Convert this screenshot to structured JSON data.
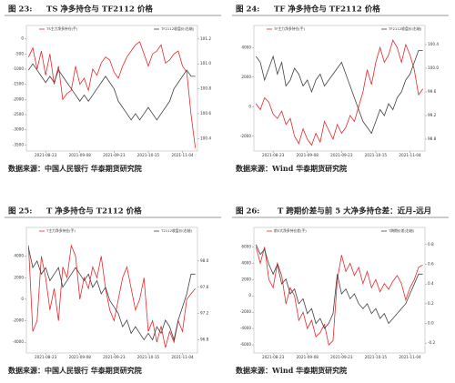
{
  "chart_data": [
    {
      "type": "line",
      "figure_label": "图 23:",
      "title": "TS 净多持仓与 TF2112 价格",
      "source": "数据来源：中国人民银行 华泰期货研究院",
      "categories": [
        null,
        null,
        null,
        null,
        "2021-08-23",
        null,
        null,
        null,
        null,
        null,
        null,
        null,
        "2021-09-08",
        null,
        null,
        null,
        null,
        null,
        null,
        null,
        "2021-09-23",
        null,
        null,
        null,
        null,
        null,
        null,
        null,
        "2021-10-15",
        null,
        null,
        null,
        null,
        null,
        null,
        null,
        "2021-11-04",
        null,
        null,
        null
      ],
      "ylim": [
        -3700,
        200
      ],
      "yticks": [
        -3500,
        -3000,
        -2500,
        -2000,
        -1500,
        -1000,
        -500,
        0
      ],
      "y2lim": [
        100.3,
        101.25
      ],
      "y2ticks": [
        {
          "value": 100.4,
          "label": "100.4"
        },
        {
          "value": 100.6,
          "label": "100.6"
        },
        {
          "value": 100.8,
          "label": "100.8"
        },
        {
          "value": 101.0,
          "label": "101.0"
        },
        {
          "value": 101.2,
          "label": "101.2"
        }
      ],
      "series": [
        {
          "name": "TS主力净多持仓(手)",
          "color": "#e8282b",
          "values": [
            -600,
            -300,
            -1000,
            -400,
            -1200,
            -500,
            -1500,
            -900,
            -2000,
            -1800,
            -1700,
            -900,
            -1500,
            -1300,
            -1700,
            -1000,
            -1200,
            -800,
            -600,
            -700,
            -1100,
            -1300,
            -900,
            -600,
            -400,
            -200,
            -100,
            -500,
            -900,
            -500,
            -400,
            -200,
            -800,
            -700,
            -500,
            -400,
            -900,
            -1100,
            -2500,
            -3600
          ]
        },
        {
          "name": "TF2112收盘价(右轴)",
          "color": "#404040",
          "axis": "y2",
          "values": [
            100.95,
            101.0,
            100.95,
            100.9,
            100.85,
            100.9,
            100.85,
            100.95,
            100.9,
            100.85,
            100.8,
            100.75,
            100.7,
            100.75,
            100.7,
            100.75,
            100.8,
            100.85,
            100.9,
            100.85,
            100.8,
            100.7,
            100.65,
            100.6,
            100.55,
            100.6,
            100.55,
            100.6,
            100.65,
            100.6,
            100.55,
            100.6,
            100.65,
            100.7,
            100.8,
            100.85,
            100.9,
            100.95,
            100.9,
            100.9
          ]
        }
      ]
    },
    {
      "type": "line",
      "figure_label": "图 24:",
      "title": "TF 净多持仓与 TF2112 价格",
      "source": "数据来源：Wind 华泰期货研究院",
      "categories": [
        null,
        null,
        null,
        null,
        "2021-08-23",
        null,
        null,
        null,
        null,
        null,
        null,
        null,
        "2021-09-08",
        null,
        null,
        null,
        null,
        null,
        null,
        null,
        "2021-09-23",
        null,
        null,
        null,
        null,
        null,
        null,
        null,
        "2021-10-15",
        null,
        null,
        null,
        null,
        null,
        null,
        null,
        "2021-11-04",
        null,
        null,
        null
      ],
      "ylim": [
        -3000,
        5000
      ],
      "yticks": [
        -2000,
        0,
        2000,
        4000
      ],
      "y2lim": [
        98.6,
        100.6
      ],
      "y2ticks": [
        {
          "value": 98.8,
          "label": "98.8"
        },
        {
          "value": 99.2,
          "label": "99.2"
        },
        {
          "value": 99.6,
          "label": "99.6"
        },
        {
          "value": 100.0,
          "label": "100.0"
        },
        {
          "value": 100.4,
          "label": "100.4"
        }
      ],
      "series": [
        {
          "name": "TF主力净多持仓(手)",
          "color": "#e8282b",
          "values": [
            200,
            -200,
            600,
            300,
            -500,
            -800,
            -300,
            -1200,
            -800,
            -2000,
            -2500,
            -1500,
            -2200,
            -2600,
            -1800,
            -2400,
            -1000,
            -1600,
            -2200,
            -1200,
            -1800,
            -1400,
            -600,
            -1000,
            0,
            1000,
            2500,
            1500,
            3000,
            4000,
            3000,
            3500,
            4500,
            4000,
            3000,
            4200,
            3500,
            2500,
            800,
            1200
          ]
        },
        {
          "name": "TF2112收盘价(右轴)",
          "color": "#404040",
          "axis": "y2",
          "values": [
            100.2,
            100.1,
            99.8,
            100.0,
            100.2,
            99.9,
            100.1,
            99.7,
            99.8,
            100.0,
            99.9,
            99.7,
            99.8,
            99.6,
            99.8,
            99.9,
            99.7,
            99.8,
            99.9,
            100.0,
            100.1,
            99.9,
            99.7,
            99.5,
            99.3,
            99.1,
            99.0,
            98.9,
            99.1,
            99.3,
            99.2,
            99.4,
            99.3,
            99.5,
            99.6,
            99.8,
            99.9,
            100.1,
            100.3,
            100.3
          ]
        }
      ]
    },
    {
      "type": "line",
      "figure_label": "图 25:",
      "title": "T 净多持仓与 T2112 价格",
      "source": "数据来源：中国人民银行 华泰期货研究院",
      "categories": [
        null,
        null,
        null,
        null,
        "2021-08-23",
        null,
        null,
        null,
        null,
        null,
        null,
        null,
        "2021-09-08",
        null,
        null,
        null,
        null,
        null,
        null,
        null,
        "2021-09-23",
        null,
        null,
        null,
        null,
        null,
        null,
        null,
        "2021-10-15",
        null,
        null,
        null,
        null,
        null,
        null,
        null,
        "2021-11-04",
        null,
        null,
        null
      ],
      "ylim": [
        -5000,
        6000
      ],
      "yticks": [
        -4000,
        -2000,
        0,
        2000,
        4000
      ],
      "y2lim": [
        96.6,
        98.4
      ],
      "y2ticks": [
        {
          "value": 96.8,
          "label": "96.8"
        },
        {
          "value": 97.2,
          "label": "97.2"
        },
        {
          "value": 97.6,
          "label": "97.6"
        },
        {
          "value": 98.0,
          "label": "98.0"
        }
      ],
      "series": [
        {
          "name": "T主力净多持仓(手)",
          "color": "#e8282b",
          "values": [
            5000,
            -3000,
            -2000,
            4000,
            2000,
            -1000,
            1000,
            -2000,
            3000,
            2000,
            5000,
            4000,
            0,
            2000,
            1000,
            3000,
            2000,
            4000,
            1000,
            -1000,
            -2000,
            0,
            2000,
            3000,
            1000,
            -1000,
            0,
            2000,
            -3000,
            -2000,
            -4000,
            -2500,
            -4500,
            -3000,
            -4000,
            -2000,
            -3000,
            0,
            500,
            1000
          ]
        },
        {
          "name": "T2112收盘价(右轴)",
          "color": "#404040",
          "axis": "y2",
          "values": [
            98.2,
            97.9,
            98.0,
            97.8,
            97.9,
            97.7,
            97.8,
            97.9,
            97.6,
            97.7,
            97.8,
            97.9,
            97.8,
            97.7,
            97.8,
            97.6,
            97.7,
            97.5,
            97.6,
            97.4,
            97.3,
            97.2,
            97.0,
            97.1,
            96.9,
            97.0,
            96.9,
            96.8,
            96.9,
            96.8,
            97.0,
            96.9,
            97.1,
            97.0,
            96.8,
            97.1,
            97.3,
            97.5,
            97.8,
            97.8
          ]
        }
      ]
    },
    {
      "type": "line",
      "figure_label": "图 26:",
      "title": "T 跨期价差与前 5 大净多持仓差：近月-远月",
      "source": "数据来源：Wind 华泰期货研究院",
      "categories": [
        null,
        null,
        null,
        null,
        "2021-08-23",
        null,
        null,
        null,
        null,
        null,
        null,
        null,
        "2021-09-08",
        null,
        null,
        null,
        null,
        null,
        null,
        null,
        "2021-09-23",
        null,
        null,
        null,
        null,
        null,
        null,
        null,
        "2021-10-15",
        null,
        null,
        null,
        null,
        null,
        null,
        null,
        "2021-11-04",
        null,
        null,
        null
      ],
      "ylim": [
        -7000,
        7500
      ],
      "yticks": [
        -6000,
        -4000,
        -2000,
        0,
        2000,
        4000,
        6000
      ],
      "y2lim": [
        -0.3,
        0.9
      ],
      "y2ticks": [
        {
          "value": -0.2,
          "label": "-0.2"
        },
        {
          "value": 0,
          "label": "0.0"
        },
        {
          "value": 0.2,
          "label": "0.2"
        },
        {
          "value": 0.4,
          "label": "0.4"
        },
        {
          "value": 0.6,
          "label": "0.6"
        },
        {
          "value": 0.8,
          "label": "0.8"
        }
      ],
      "series": [
        {
          "name": "前5大净多持仓差(手)",
          "color": "#e8282b",
          "values": [
            6000,
            4000,
            6000,
            2000,
            1000,
            4000,
            2500,
            -1000,
            1000,
            0,
            -3000,
            -2000,
            -4000,
            -3000,
            -5000,
            -4500,
            -3500,
            -6000,
            -5500,
            2000,
            5000,
            3000,
            4000,
            2500,
            3500,
            1500,
            3000,
            1000,
            2000,
            500,
            1500,
            800,
            1800,
            2500,
            1500,
            -500,
            1000,
            2000,
            3500,
            3800
          ]
        },
        {
          "name": "T跨期价差(右轴)",
          "color": "#404040",
          "axis": "y2",
          "values": [
            0.8,
            0.7,
            0.75,
            0.6,
            0.5,
            0.6,
            0.4,
            0.45,
            0.3,
            0.35,
            0.2,
            0.25,
            0.1,
            0.15,
            0.0,
            0.05,
            -0.05,
            0.0,
            0.1,
            0.5,
            0.3,
            0.35,
            0.25,
            0.3,
            0.2,
            0.15,
            0.2,
            0.1,
            0.15,
            0.05,
            0.1,
            0.0,
            0.05,
            0.1,
            0.15,
            0.2,
            0.3,
            0.4,
            0.5,
            0.5
          ]
        }
      ]
    }
  ]
}
